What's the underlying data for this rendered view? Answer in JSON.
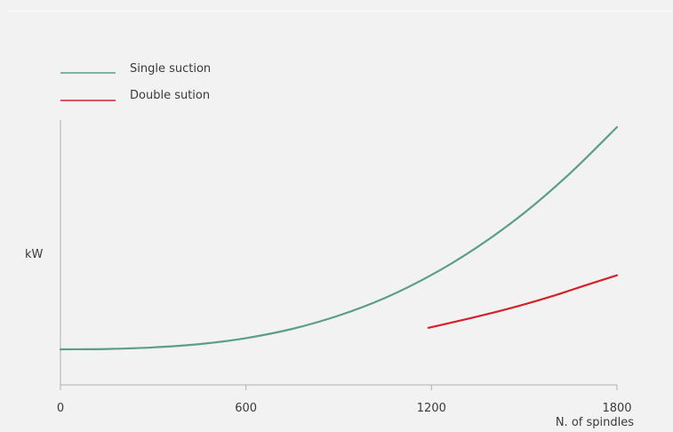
{
  "chart_data": {
    "type": "line",
    "title": "",
    "xlabel": "N. of spindles",
    "ylabel": "kW",
    "xlim": [
      0,
      1800
    ],
    "x_ticks": [
      "0",
      "600",
      "1200",
      "1800"
    ],
    "y_ticks": [],
    "grid": false,
    "legend_position": "top-left",
    "series": [
      {
        "name": "Single suction",
        "color": "#5b9e8a",
        "x": [
          0,
          150,
          300,
          450,
          600,
          750,
          900,
          1050,
          1200,
          1350,
          1500,
          1650,
          1800
        ],
        "y": [
          0.0,
          0.002,
          0.011,
          0.03,
          0.064,
          0.117,
          0.193,
          0.294,
          0.425,
          0.586,
          0.78,
          1.009,
          1.27
        ]
      },
      {
        "name": "Double sution",
        "color": "#d6202a",
        "x": [
          1190,
          1300,
          1400,
          1500,
          1600,
          1700,
          1800
        ],
        "y": [
          0.123,
          0.167,
          0.21,
          0.257,
          0.309,
          0.367,
          0.423
        ]
      }
    ]
  }
}
